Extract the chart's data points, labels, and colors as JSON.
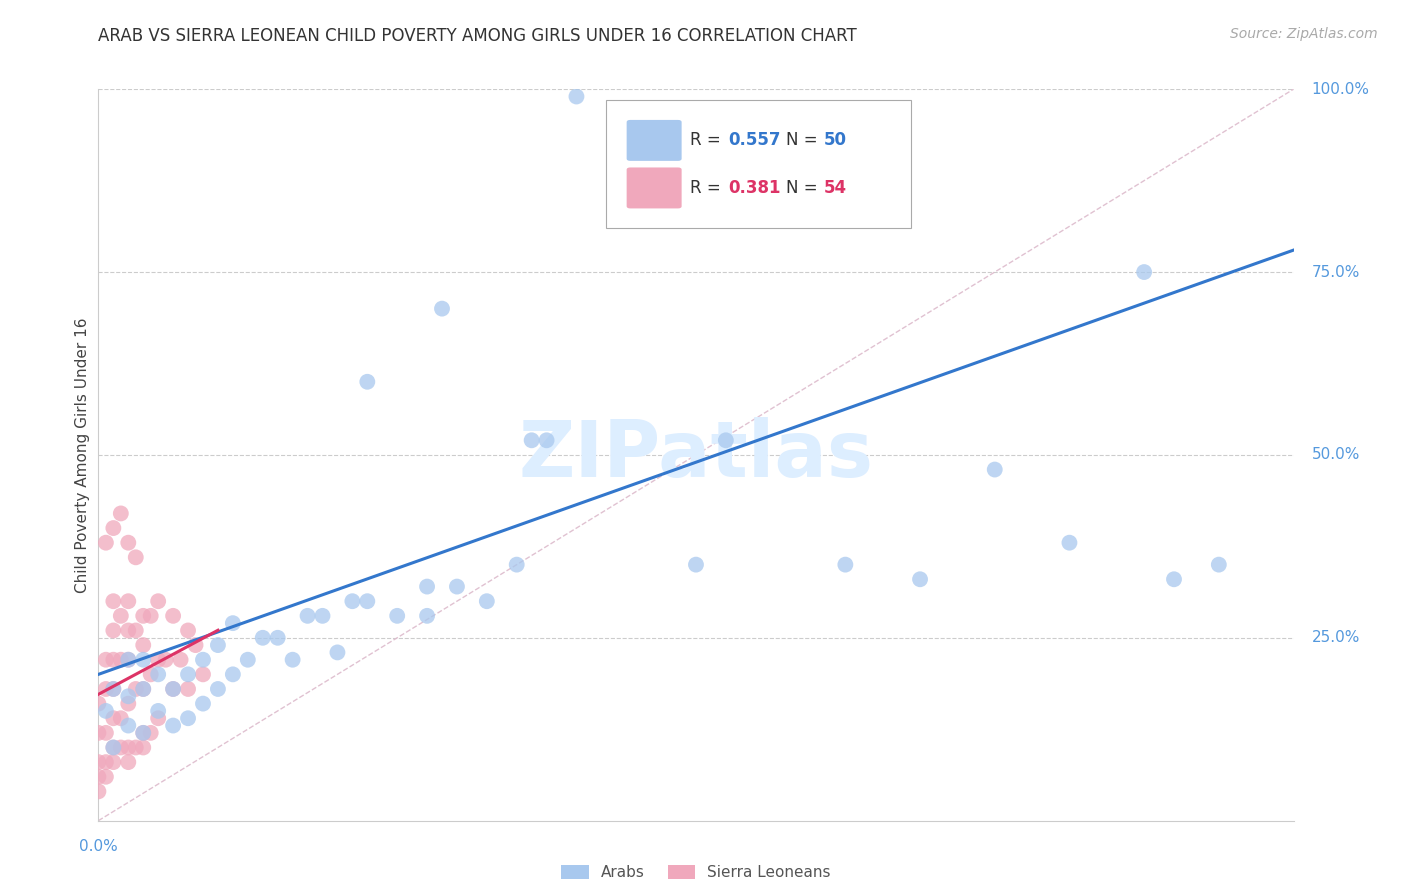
{
  "title": "ARAB VS SIERRA LEONEAN CHILD POVERTY AMONG GIRLS UNDER 16 CORRELATION CHART",
  "source": "Source: ZipAtlas.com",
  "ylabel": "Child Poverty Among Girls Under 16",
  "xlim": [
    0.0,
    0.8
  ],
  "ylim": [
    0.0,
    1.0
  ],
  "yticks_right": [
    0.25,
    0.5,
    0.75,
    1.0
  ],
  "yticklabels_right": [
    "25.0%",
    "50.0%",
    "75.0%",
    "100.0%"
  ],
  "arab_R": 0.557,
  "arab_N": 50,
  "sl_R": 0.381,
  "sl_N": 54,
  "arab_color": "#a8c8ee",
  "sl_color": "#f0a8bc",
  "arab_line_color": "#3377cc",
  "sl_line_color": "#dd3366",
  "diag_line_color": "#ddbbcc",
  "tick_label_color": "#5599dd",
  "background_color": "#ffffff",
  "grid_color": "#cccccc",
  "watermark_color": "#ddeeff",
  "arab_scatter_x": [
    0.005,
    0.01,
    0.01,
    0.02,
    0.02,
    0.02,
    0.03,
    0.03,
    0.03,
    0.04,
    0.04,
    0.05,
    0.05,
    0.06,
    0.06,
    0.07,
    0.07,
    0.08,
    0.08,
    0.09,
    0.09,
    0.1,
    0.11,
    0.12,
    0.13,
    0.14,
    0.15,
    0.16,
    0.17,
    0.18,
    0.2,
    0.22,
    0.22,
    0.24,
    0.26,
    0.28,
    0.29,
    0.3,
    0.32,
    0.4,
    0.42,
    0.5,
    0.55,
    0.6,
    0.65,
    0.7,
    0.72,
    0.75,
    0.18,
    0.23
  ],
  "arab_scatter_y": [
    0.15,
    0.1,
    0.18,
    0.13,
    0.17,
    0.22,
    0.12,
    0.18,
    0.22,
    0.15,
    0.2,
    0.13,
    0.18,
    0.14,
    0.2,
    0.16,
    0.22,
    0.18,
    0.24,
    0.2,
    0.27,
    0.22,
    0.25,
    0.25,
    0.22,
    0.28,
    0.28,
    0.23,
    0.3,
    0.3,
    0.28,
    0.28,
    0.32,
    0.32,
    0.3,
    0.35,
    0.52,
    0.52,
    0.99,
    0.35,
    0.52,
    0.35,
    0.33,
    0.48,
    0.38,
    0.75,
    0.33,
    0.35,
    0.6,
    0.7
  ],
  "sl_scatter_x": [
    0.0,
    0.0,
    0.0,
    0.005,
    0.005,
    0.005,
    0.005,
    0.01,
    0.01,
    0.01,
    0.01,
    0.01,
    0.01,
    0.015,
    0.015,
    0.015,
    0.02,
    0.02,
    0.02,
    0.02,
    0.02,
    0.025,
    0.025,
    0.03,
    0.03,
    0.03,
    0.03,
    0.035,
    0.035,
    0.04,
    0.04,
    0.04,
    0.045,
    0.05,
    0.05,
    0.055,
    0.06,
    0.06,
    0.065,
    0.07,
    0.005,
    0.01,
    0.015,
    0.02,
    0.025,
    0.0,
    0.0,
    0.005,
    0.01,
    0.015,
    0.02,
    0.025,
    0.03,
    0.035
  ],
  "sl_scatter_y": [
    0.08,
    0.12,
    0.16,
    0.08,
    0.12,
    0.18,
    0.22,
    0.1,
    0.14,
    0.18,
    0.22,
    0.26,
    0.3,
    0.14,
    0.22,
    0.28,
    0.1,
    0.16,
    0.22,
    0.26,
    0.3,
    0.18,
    0.26,
    0.12,
    0.18,
    0.24,
    0.28,
    0.2,
    0.28,
    0.14,
    0.22,
    0.3,
    0.22,
    0.18,
    0.28,
    0.22,
    0.18,
    0.26,
    0.24,
    0.2,
    0.38,
    0.4,
    0.42,
    0.38,
    0.36,
    0.04,
    0.06,
    0.06,
    0.08,
    0.1,
    0.08,
    0.1,
    0.1,
    0.12
  ]
}
